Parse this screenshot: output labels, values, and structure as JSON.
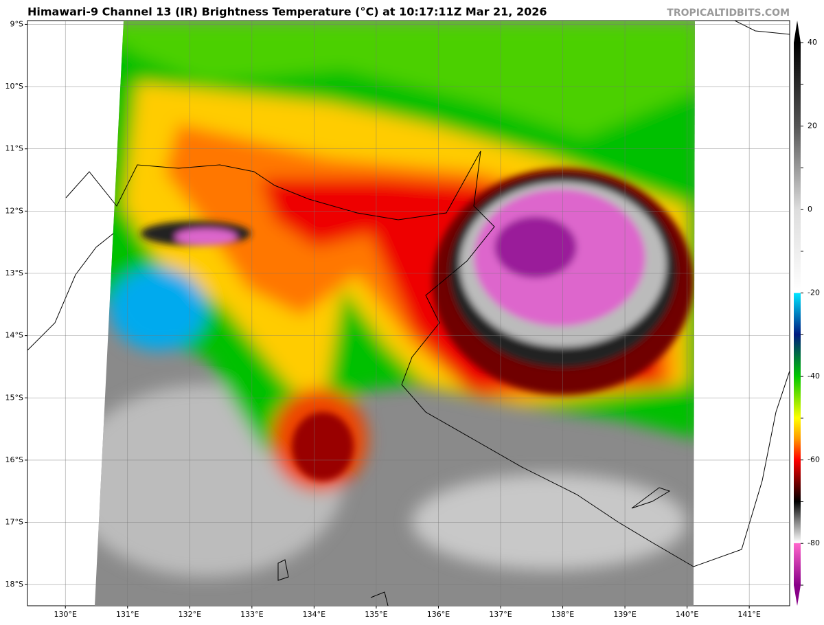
{
  "map": {
    "title": "Himawari-9 Channel 13 (IR) Brightness Temperature (°C) at 10:17:11Z Mar 21, 2026",
    "watermark": "TROPICALTIDBITS.COM",
    "xlim": [
      129.39,
      141.65
    ],
    "ylim": [
      -18.34,
      -8.94
    ],
    "xticks": [
      {
        "value": 130,
        "label": "130°E"
      },
      {
        "value": 131,
        "label": "131°E"
      },
      {
        "value": 132,
        "label": "132°E"
      },
      {
        "value": 133,
        "label": "133°E"
      },
      {
        "value": 134,
        "label": "134°E"
      },
      {
        "value": 135,
        "label": "135°E"
      },
      {
        "value": 136,
        "label": "136°E"
      },
      {
        "value": 137,
        "label": "137°E"
      },
      {
        "value": 138,
        "label": "138°E"
      },
      {
        "value": 139,
        "label": "139°E"
      },
      {
        "value": 140,
        "label": "140°E"
      },
      {
        "value": 141,
        "label": "141°E"
      }
    ],
    "yticks": [
      {
        "value": -9,
        "label": "9°S"
      },
      {
        "value": -10,
        "label": "10°S"
      },
      {
        "value": -11,
        "label": "11°S"
      },
      {
        "value": -12,
        "label": "12°S"
      },
      {
        "value": -13,
        "label": "13°S"
      },
      {
        "value": -14,
        "label": "14°S"
      },
      {
        "value": -15,
        "label": "15°S"
      },
      {
        "value": -16,
        "label": "16°S"
      },
      {
        "value": -17,
        "label": "17°S"
      },
      {
        "value": -18,
        "label": "18°S"
      }
    ],
    "grid": true,
    "colorbar": {
      "lim": [
        -90,
        40
      ],
      "ticks": [
        40,
        30,
        20,
        10,
        0,
        -10,
        -20,
        -30,
        -40,
        -50,
        -60,
        -70,
        -80,
        -90
      ]
    }
  }
}
